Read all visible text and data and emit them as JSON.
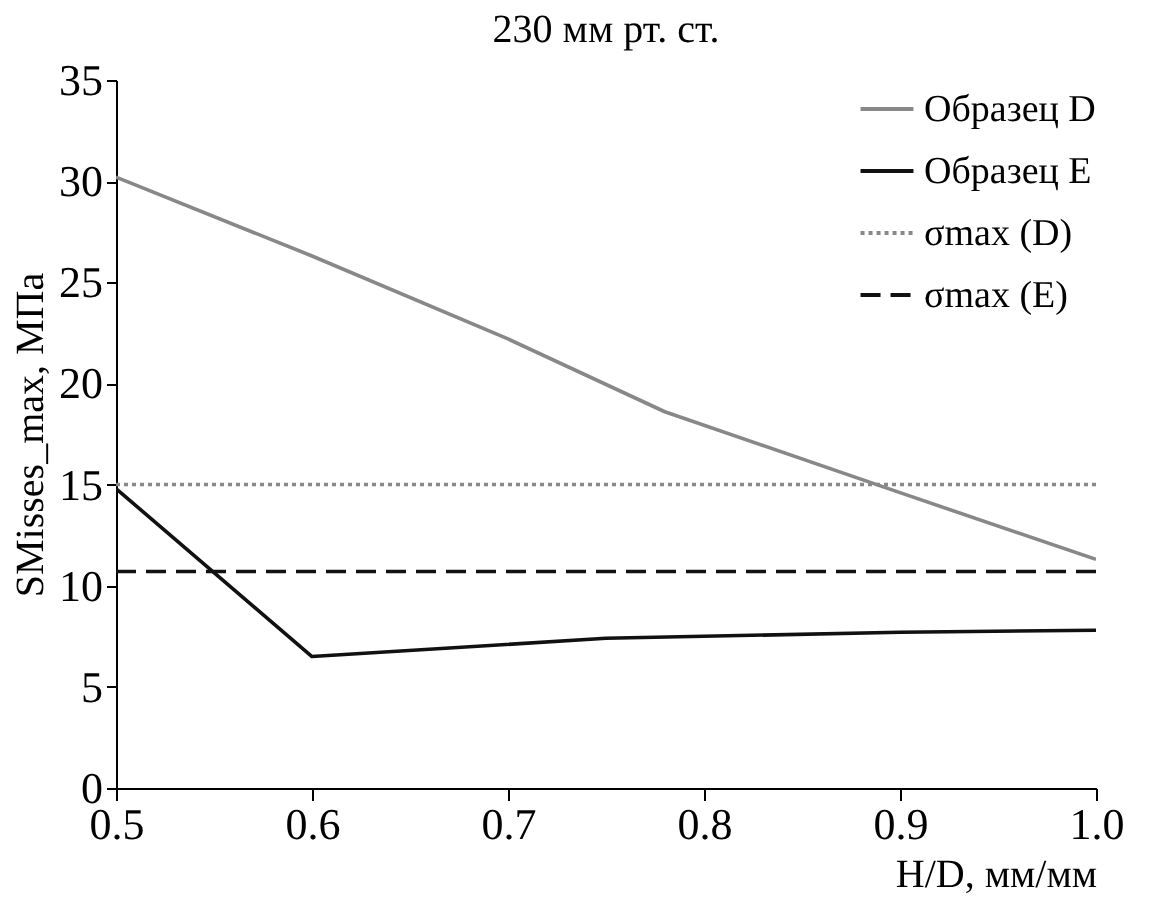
{
  "chart_data": {
    "type": "line",
    "title": "230 мм рт. ст.",
    "xlabel": "H/D, мм/мм",
    "ylabel": "SMisses_max, МПа",
    "xlim": [
      0.5,
      1.0
    ],
    "xticks": [
      0.5,
      0.6,
      0.7,
      0.8,
      0.9,
      {
        "value": 1.0,
        "label": "1.0"
      }
    ],
    "ylim": [
      0,
      35
    ],
    "yticks": [
      0,
      5,
      10,
      15,
      20,
      25,
      30,
      35
    ],
    "grid": false,
    "legend": "top right",
    "line_style": "solid",
    "marker": "none",
    "series": [
      {
        "name": "Образец D",
        "color": "#888888",
        "x": [
          0.5,
          0.6,
          0.7,
          0.78,
          0.9,
          1.0
        ],
        "values": [
          30.2,
          26.3,
          22.2,
          18.6,
          14.6,
          11.3
        ]
      },
      {
        "name": "Образец E",
        "color": "#111111",
        "x": [
          0.5,
          0.6,
          0.75,
          0.9,
          1.0
        ],
        "values": [
          14.8,
          6.5,
          7.4,
          7.7,
          7.8
        ]
      }
    ],
    "ref_lines": [
      {
        "axis": "y",
        "value": 15.0,
        "label": "σmax (D)",
        "color": "#888888",
        "line_style": "dotted"
      },
      {
        "axis": "y",
        "value": 10.7,
        "label": "σmax (E)",
        "color": "#111111",
        "line_style": "dashed"
      }
    ]
  }
}
